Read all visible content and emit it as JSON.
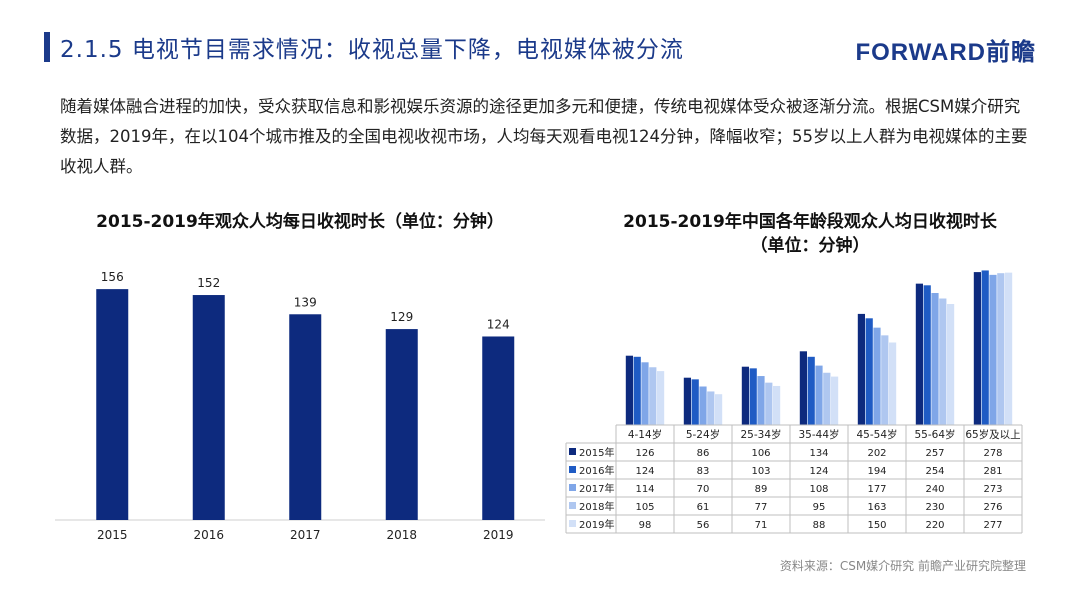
{
  "header": {
    "title": "2.1.5 电视节目需求情况：收视总量下降，电视媒体被分流",
    "logo": "FORWARD前瞻"
  },
  "intro": "随着媒体融合进程的加快，受众获取信息和影视娱乐资源的途径更加多元和便捷，传统电视媒体受众被逐渐分流。根据CSM媒介研究数据，2019年，在以104个城市推及的全国电视收视市场，人均每天观看电视124分钟，降幅收窄；55岁以上人群为电视媒体的主要收视人群。",
  "chart_data": [
    {
      "type": "bar",
      "title": "2015-2019年观众人均每日收视时长（单位：分钟）",
      "categories": [
        "2015",
        "2016",
        "2017",
        "2018",
        "2019"
      ],
      "values": [
        156,
        152,
        139,
        129,
        124
      ],
      "color": "#0d2a7e"
    },
    {
      "type": "bar",
      "title_line1": "2015-2019年中国各年龄段观众人均日收视时长",
      "title_line2": "（单位：分钟）",
      "categories": [
        "4-14岁",
        "5-24岁",
        "25-34岁",
        "35-44岁",
        "45-54岁",
        "55-64岁",
        "65岁及以上"
      ],
      "series": [
        {
          "name": "2015年",
          "values": [
            126,
            86,
            106,
            134,
            202,
            257,
            278
          ],
          "color": "#0d2a7e"
        },
        {
          "name": "2016年",
          "values": [
            124,
            83,
            103,
            124,
            194,
            254,
            281
          ],
          "color": "#1f5bc4"
        },
        {
          "name": "2017年",
          "values": [
            114,
            70,
            89,
            108,
            177,
            240,
            273
          ],
          "color": "#7fa6e8"
        },
        {
          "name": "2018年",
          "values": [
            105,
            61,
            77,
            95,
            163,
            230,
            276
          ],
          "color": "#afc7f0"
        },
        {
          "name": "2019年",
          "values": [
            98,
            56,
            71,
            88,
            150,
            220,
            277
          ],
          "color": "#d2e0f7"
        }
      ],
      "legend": "data-table"
    }
  ],
  "source": "资料来源：CSM媒介研究 前瞻产业研究院整理"
}
